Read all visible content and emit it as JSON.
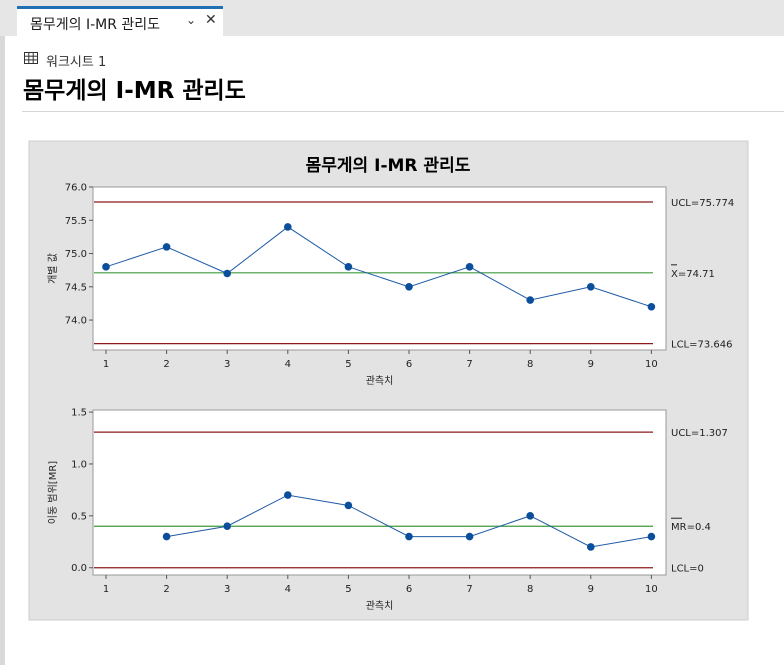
{
  "tab": {
    "title": "몸무게의 I-MR 관리도",
    "chevron_icon": "chevron-down-icon",
    "close_icon": "close-icon"
  },
  "worksheet": {
    "icon": "grid-icon",
    "label": "워크시트 1"
  },
  "page": {
    "title": "몸무게의 I-MR 관리도"
  },
  "colors": {
    "line": "#1f5aa6",
    "point": "#0b4f9c",
    "center": "#3d9a3d",
    "limit": "#8b1a1a",
    "panel": "#e3e3e3"
  },
  "chart_data": [
    {
      "type": "line",
      "title": "몸무게의 I-MR 관리도",
      "xlabel": "관측치",
      "ylabel": "개별 값",
      "x": [
        1,
        2,
        3,
        4,
        5,
        6,
        7,
        8,
        9,
        10
      ],
      "xticks": [
        "1",
        "2",
        "3",
        "4",
        "5",
        "6",
        "7",
        "8",
        "9",
        "10"
      ],
      "series": [
        {
          "values": [
            74.8,
            75.1,
            74.7,
            75.4,
            74.8,
            74.5,
            74.8,
            74.3,
            74.5,
            74.2
          ]
        }
      ],
      "ylim": [
        73.55,
        76.0
      ],
      "yticks": [
        "74.0",
        "74.5",
        "75.0",
        "75.5",
        "76.0"
      ],
      "ucl": 75.774,
      "center": 74.71,
      "lcl": 73.646,
      "ucl_label": "UCL=75.774",
      "center_label": "X=74.71",
      "lcl_label": "LCL=73.646",
      "grid": false
    },
    {
      "type": "line",
      "xlabel": "관측치",
      "ylabel": "이동 범위[MR]",
      "x": [
        2,
        3,
        4,
        5,
        6,
        7,
        8,
        9,
        10
      ],
      "xticks": [
        "1",
        "2",
        "3",
        "4",
        "5",
        "6",
        "7",
        "8",
        "9",
        "10"
      ],
      "series": [
        {
          "values": [
            0.3,
            0.4,
            0.7,
            0.6,
            0.3,
            0.3,
            0.5,
            0.2,
            0.3
          ]
        }
      ],
      "ylim": [
        -0.07,
        1.52
      ],
      "yticks": [
        "0.0",
        "0.5",
        "1.0",
        "1.5"
      ],
      "ucl": 1.307,
      "center": 0.4,
      "lcl": 0,
      "ucl_label": "UCL=1.307",
      "center_label": "MR=0.4",
      "lcl_label": "LCL=0",
      "grid": false
    }
  ]
}
